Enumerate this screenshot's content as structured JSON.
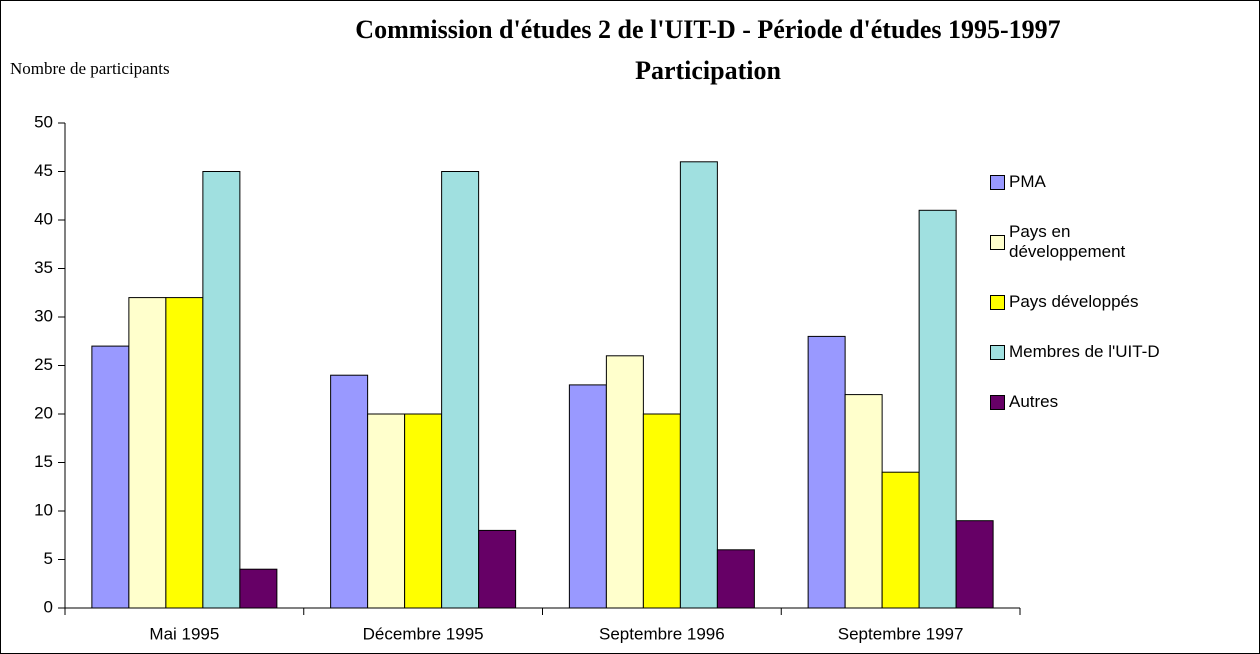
{
  "chart_data": {
    "type": "bar",
    "title": "Commission d'études 2 de l'UIT-D - Période d'études 1995-1997",
    "subtitle": "Participation",
    "y_label": "Nombre de participants",
    "categories": [
      "Mai 1995",
      "Décembre 1995",
      "Septembre 1996",
      "Septembre 1997"
    ],
    "series": [
      {
        "name": "PMA",
        "color": "#9999ff",
        "values": [
          27,
          24,
          23,
          28
        ]
      },
      {
        "name": "Pays en développement",
        "color": "#ffffcc",
        "values": [
          32,
          20,
          26,
          22
        ]
      },
      {
        "name": "Pays développés",
        "color": "#ffff00",
        "values": [
          32,
          20,
          20,
          14
        ]
      },
      {
        "name": "Membres de l'UIT-D",
        "color": "#a0e0e0",
        "values": [
          45,
          45,
          46,
          41
        ]
      },
      {
        "name": "Autres",
        "color": "#660066",
        "values": [
          4,
          8,
          6,
          9
        ]
      }
    ],
    "ylim": [
      0,
      50
    ],
    "yticks": [
      0,
      5,
      10,
      15,
      20,
      25,
      30,
      35,
      40,
      45,
      50
    ],
    "grid": false,
    "legend": "right"
  }
}
